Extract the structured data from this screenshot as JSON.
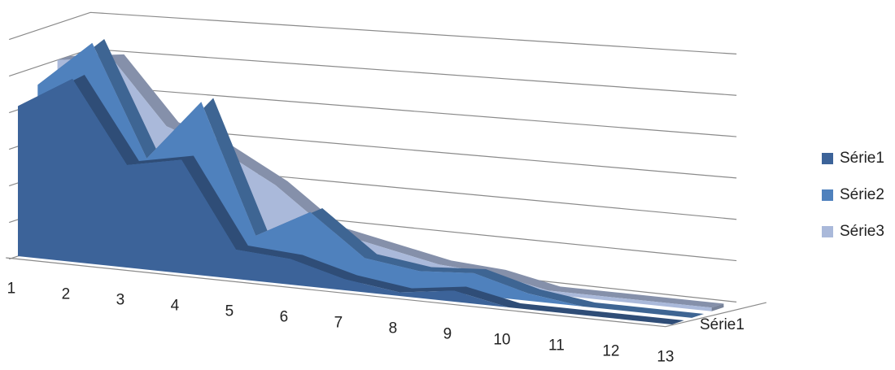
{
  "chart_data": {
    "type": "area3d",
    "categories": [
      "1",
      "2",
      "3",
      "4",
      "5",
      "6",
      "7",
      "8",
      "9",
      "10",
      "11",
      "12",
      "13"
    ],
    "depth_label": "Série1",
    "series": [
      {
        "name": "Série1",
        "color": "#3c6399",
        "values": [
          41,
          50,
          28,
          31,
          8,
          7,
          3,
          1,
          3,
          0,
          0,
          0,
          0
        ]
      },
      {
        "name": "Série2",
        "color": "#4f81bd",
        "values": [
          45,
          58,
          28,
          45,
          10,
          18,
          7,
          5,
          6,
          2,
          0,
          0,
          0
        ]
      },
      {
        "name": "Série3",
        "color": "#aab9da",
        "values": [
          50,
          52,
          35,
          30,
          22,
          11,
          8,
          5,
          4,
          1,
          1,
          1,
          1
        ]
      }
    ],
    "ylim": [
      0,
      60
    ],
    "yticks": [
      0,
      10,
      20,
      30,
      40,
      50,
      60
    ],
    "grid": true,
    "legend": "right"
  }
}
